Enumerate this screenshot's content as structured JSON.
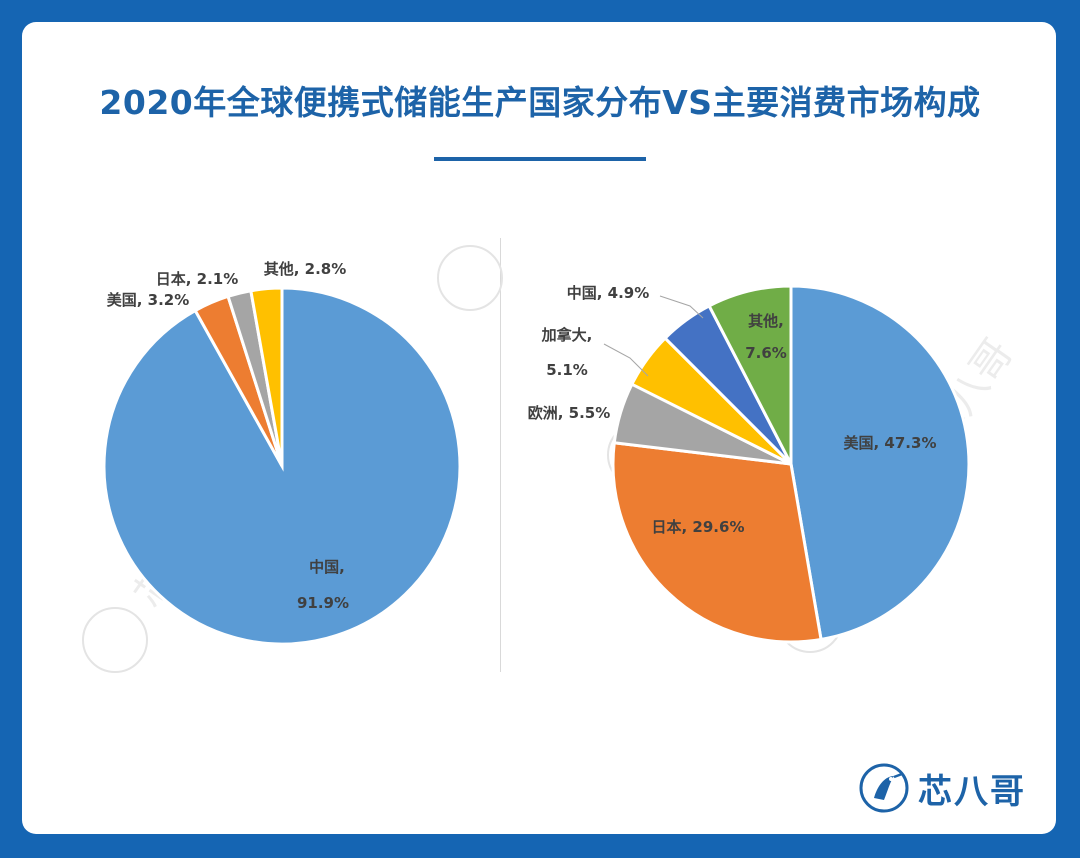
{
  "title": "2020年全球便携式储能生产国家分布VS主要消费市场构成",
  "brand": {
    "name": "芯八哥",
    "accent": "#1d63a8"
  },
  "watermark_text": "芯八哥",
  "chart_data": [
    {
      "type": "pie",
      "title": "",
      "slices": [
        {
          "label": "中国",
          "value": 91.9,
          "label_text": "中国,",
          "value_text": "91.9%",
          "color": "#5b9bd5"
        },
        {
          "label": "美国",
          "value": 3.2,
          "label_text": "美国, 3.2%",
          "color": "#ed7d31"
        },
        {
          "label": "日本",
          "value": 2.1,
          "label_text": "日本, 2.1%",
          "color": "#a5a5a5"
        },
        {
          "label": "其他",
          "value": 2.8,
          "label_text": "其他, 2.8%",
          "color": "#ffc000"
        }
      ]
    },
    {
      "type": "pie",
      "title": "",
      "slices": [
        {
          "label": "美国",
          "value": 47.3,
          "label_text": "美国, 47.3%",
          "color": "#5b9bd5"
        },
        {
          "label": "日本",
          "value": 29.6,
          "label_text": "日本, 29.6%",
          "color": "#ed7d31"
        },
        {
          "label": "欧洲",
          "value": 5.5,
          "label_text": "欧洲, 5.5%",
          "color": "#a5a5a5"
        },
        {
          "label": "加拿大",
          "value": 5.1,
          "label_text": "加拿大,",
          "value_text": "5.1%",
          "color": "#ffc000"
        },
        {
          "label": "中国",
          "value": 4.9,
          "label_text": "中国, 4.9%",
          "color": "#4472c4"
        },
        {
          "label": "其他",
          "value": 7.6,
          "label_text": "其他,",
          "value_text": "7.6%",
          "color": "#70ad47"
        }
      ]
    }
  ]
}
